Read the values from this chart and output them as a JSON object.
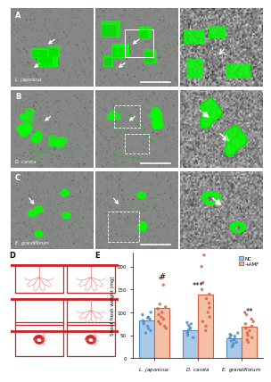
{
  "panel_labels": [
    "A",
    "B",
    "C",
    "D",
    "E"
  ],
  "species": [
    "L. japonicus",
    "D. carota",
    "E. grandiflorum"
  ],
  "bar_colors_NC": "#aac8e8",
  "bar_colors_AMF": "#f5c0a8",
  "bar_edge_NC": "#4a90c4",
  "bar_edge_AMF": "#d86040",
  "legend_labels": [
    "NC",
    "+AMF"
  ],
  "significance_lj": "#",
  "significance_dc": "***",
  "significance_eg": "**",
  "NC_means": [
    82,
    62,
    43
  ],
  "AMF_means": [
    110,
    138,
    68
  ],
  "NC_dots": [
    [
      55,
      60,
      65,
      70,
      75,
      80,
      82,
      85,
      88,
      90,
      95,
      100
    ],
    [
      45,
      50,
      55,
      58,
      62,
      65,
      68,
      72,
      75,
      78
    ],
    [
      25,
      28,
      32,
      35,
      38,
      40,
      42,
      45,
      48,
      50,
      52,
      55
    ]
  ],
  "AMF_dots": [
    [
      65,
      70,
      75,
      80,
      85,
      90,
      95,
      100,
      108,
      112,
      118,
      160,
      175
    ],
    [
      60,
      70,
      80,
      90,
      100,
      110,
      120,
      130,
      140,
      150,
      165,
      200,
      225
    ],
    [
      35,
      40,
      45,
      50,
      55,
      60,
      65,
      70,
      75,
      80,
      85,
      95,
      100
    ]
  ],
  "ylim": [
    0,
    230
  ],
  "yticks": [
    0,
    50,
    100,
    150,
    200
  ],
  "ylabel": "Shoot fresh weight (mg)",
  "background_color": "#ffffff",
  "dot_color_NC": "#4a90c4",
  "dot_color_AMF": "#d86040",
  "dot_size": 6,
  "bar_width": 0.35,
  "red_color": "#cc2222",
  "red_light": "#e88888"
}
